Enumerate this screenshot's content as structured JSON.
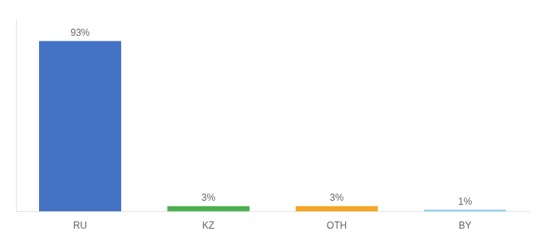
{
  "chart_data": {
    "type": "bar",
    "categories": [
      "RU",
      "KZ",
      "OTH",
      "BY"
    ],
    "values": [
      93,
      3,
      3,
      1
    ],
    "value_labels": [
      "93%",
      "3%",
      "3%",
      "1%"
    ],
    "colors": [
      "#4472c4",
      "#4caf50",
      "#f5a623",
      "#87ceeb"
    ],
    "ylim": [
      0,
      105
    ],
    "data_labels": true,
    "tick_labels": "x",
    "grid": false
  }
}
